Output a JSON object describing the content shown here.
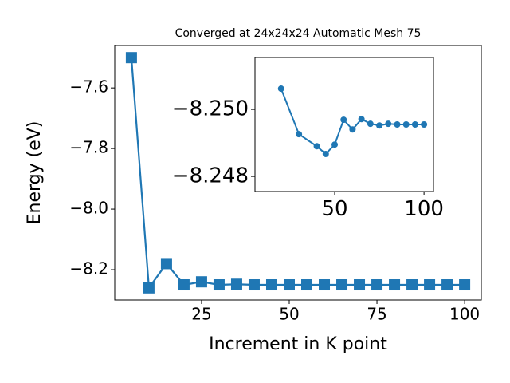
{
  "chart_data": [
    {
      "type": "line",
      "title": "Converged at 24x24x24 Automatic Mesh 75",
      "xlabel": "Increment in K point",
      "ylabel": "Energy (eV)",
      "marker": "square",
      "x": [
        5,
        10,
        15,
        20,
        25,
        30,
        35,
        40,
        45,
        50,
        55,
        60,
        65,
        70,
        75,
        80,
        85,
        90,
        95,
        100
      ],
      "series": [
        {
          "color": "#1f77b4",
          "values": [
            -7.5,
            -8.26,
            -8.18,
            -8.25,
            -8.24,
            -8.25,
            -8.248,
            -8.25,
            -8.25,
            -8.25,
            -8.25,
            -8.25,
            -8.25,
            -8.25,
            -8.25,
            -8.25,
            -8.25,
            -8.25,
            -8.25,
            -8.25
          ]
        }
      ],
      "xlim": [
        0.25,
        104.75
      ],
      "ylim": [
        -8.3,
        -7.46
      ],
      "xticks": [
        25,
        50,
        75,
        100
      ],
      "yticks": [
        {
          "value": -7.6,
          "label": "−7.6"
        },
        {
          "value": -7.8,
          "label": "−7.8"
        },
        {
          "value": -8.0,
          "label": "−8.0"
        },
        {
          "value": -8.2,
          "label": "−8.2"
        }
      ]
    },
    {
      "type": "line",
      "marker": "circle",
      "yinverted": true,
      "x": [
        20,
        30,
        40,
        45,
        50,
        55,
        60,
        65,
        70,
        75,
        80,
        85,
        90,
        95,
        100
      ],
      "series": [
        {
          "color": "#1f77b4",
          "values": [
            -8.25062,
            -8.24926,
            -8.2489,
            -8.24867,
            -8.24895,
            -8.24969,
            -8.2494,
            -8.24971,
            -8.24957,
            -8.24952,
            -8.24957,
            -8.24955,
            -8.24955,
            -8.24955,
            -8.24955
          ]
        }
      ],
      "xlim": [
        5.4,
        105.3
      ],
      "ylim": [
        -8.24755,
        -8.25155
      ],
      "xticks": [
        50,
        100
      ],
      "yticks": [
        {
          "value": -8.25,
          "label": "−8.250"
        },
        {
          "value": -8.248,
          "label": "−8.248"
        }
      ]
    }
  ]
}
